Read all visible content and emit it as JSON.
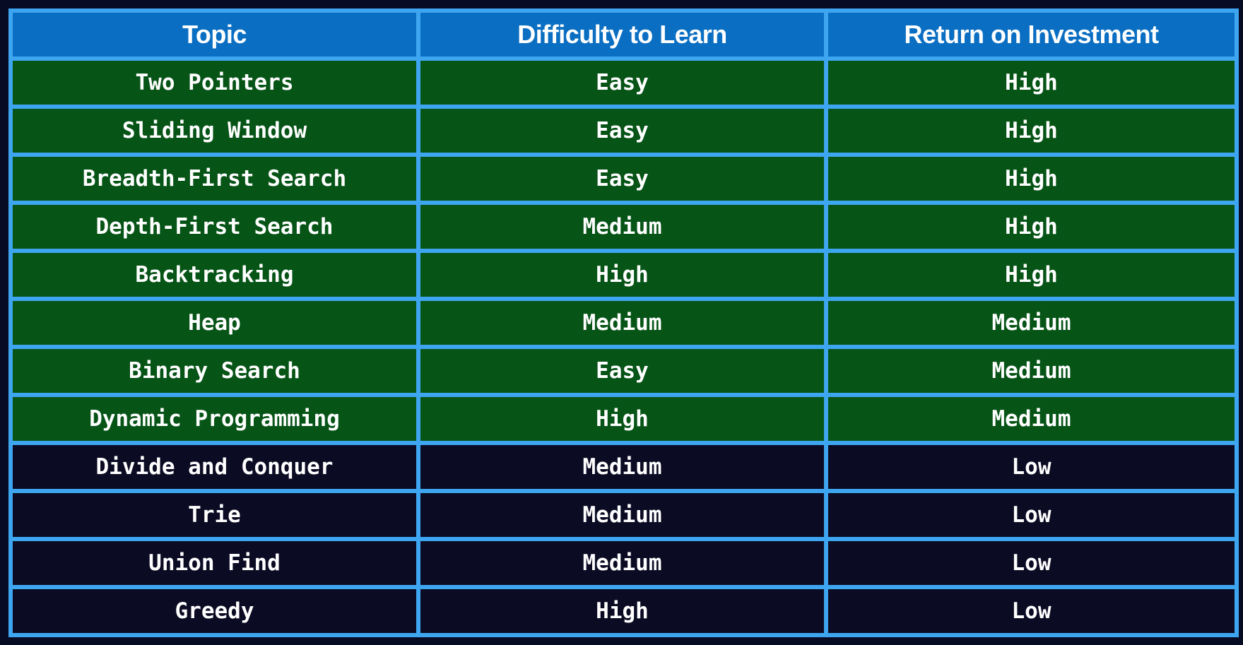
{
  "colors": {
    "border": "#3ea6f0",
    "header_bg": "#0a6ec2",
    "high_roi_bg": "#075417",
    "low_roi_bg": "#0b0b24",
    "page_bg": "#070b24"
  },
  "table": {
    "headers": [
      "Topic",
      "Difficulty to Learn",
      "Return on Investment"
    ],
    "rows": [
      {
        "topic": "Two Pointers",
        "difficulty": "Easy",
        "roi": "High",
        "style": "green"
      },
      {
        "topic": "Sliding Window",
        "difficulty": "Easy",
        "roi": "High",
        "style": "green"
      },
      {
        "topic": "Breadth-First Search",
        "difficulty": "Easy",
        "roi": "High",
        "style": "green"
      },
      {
        "topic": "Depth-First Search",
        "difficulty": "Medium",
        "roi": "High",
        "style": "green"
      },
      {
        "topic": "Backtracking",
        "difficulty": "High",
        "roi": "High",
        "style": "green"
      },
      {
        "topic": "Heap",
        "difficulty": "Medium",
        "roi": "Medium",
        "style": "green"
      },
      {
        "topic": "Binary Search",
        "difficulty": "Easy",
        "roi": "Medium",
        "style": "green"
      },
      {
        "topic": "Dynamic Programming",
        "difficulty": "High",
        "roi": "Medium",
        "style": "green"
      },
      {
        "topic": "Divide and Conquer",
        "difficulty": "Medium",
        "roi": "Low",
        "style": "dark"
      },
      {
        "topic": "Trie",
        "difficulty": "Medium",
        "roi": "Low",
        "style": "dark"
      },
      {
        "topic": "Union Find",
        "difficulty": "Medium",
        "roi": "Low",
        "style": "dark"
      },
      {
        "topic": "Greedy",
        "difficulty": "High",
        "roi": "Low",
        "style": "dark"
      }
    ]
  }
}
